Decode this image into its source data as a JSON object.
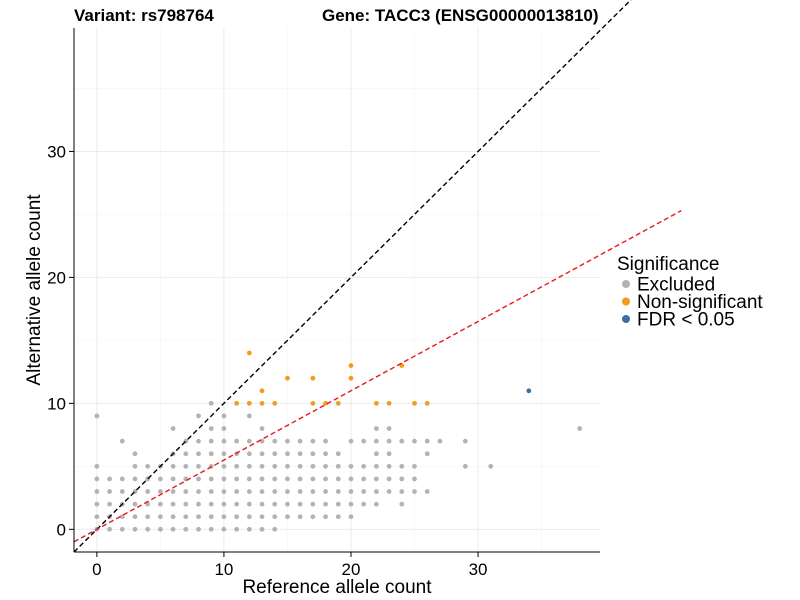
{
  "chart_data": {
    "type": "scatter",
    "title_left": "Variant: rs798764",
    "title_right": "Gene: TACC3 (ENSG00000013810)",
    "xlabel": "Reference allele count",
    "ylabel": "Alternative allele count",
    "xlim": [
      -1.8,
      39.6
    ],
    "ylim": [
      -1.8,
      39.8
    ],
    "xticks": [
      0,
      10,
      20,
      30
    ],
    "yticks": [
      0,
      10,
      20,
      30
    ],
    "grid": true,
    "legend": {
      "title": "Significance",
      "position": "right",
      "entries": [
        {
          "label": "Excluded",
          "color": "#b3b3b3"
        },
        {
          "label": "Non-significant",
          "color": "#f49a20"
        },
        {
          "label": "FDR < 0.05",
          "color": "#3b6ea5"
        }
      ]
    },
    "reference_lines": [
      {
        "name": "identity",
        "slope": 1,
        "intercept": 0,
        "color": "#000000",
        "dash": true
      },
      {
        "name": "expected-ratio",
        "slope": 0.55,
        "intercept": 0,
        "color": "#e41a1c",
        "dash": true
      }
    ],
    "series": [
      {
        "name": "Excluded",
        "color": "#b3b3b3",
        "points": [
          [
            0,
            9
          ],
          [
            0,
            5
          ],
          [
            0,
            4
          ],
          [
            0,
            3
          ],
          [
            0,
            2
          ],
          [
            0,
            1
          ],
          [
            0,
            0
          ],
          [
            1,
            4
          ],
          [
            1,
            3
          ],
          [
            1,
            2
          ],
          [
            1,
            1
          ],
          [
            1,
            0
          ],
          [
            2,
            7
          ],
          [
            2,
            4
          ],
          [
            2,
            3
          ],
          [
            2,
            2
          ],
          [
            2,
            1
          ],
          [
            2,
            0
          ],
          [
            3,
            6
          ],
          [
            3,
            5
          ],
          [
            3,
            4
          ],
          [
            3,
            3
          ],
          [
            3,
            2
          ],
          [
            3,
            1
          ],
          [
            3,
            0
          ],
          [
            4,
            5
          ],
          [
            4,
            4
          ],
          [
            4,
            3
          ],
          [
            4,
            2
          ],
          [
            4,
            1
          ],
          [
            4,
            0
          ],
          [
            5,
            5
          ],
          [
            5,
            4
          ],
          [
            5,
            3
          ],
          [
            5,
            2
          ],
          [
            5,
            1
          ],
          [
            5,
            0
          ],
          [
            6,
            8
          ],
          [
            6,
            6
          ],
          [
            6,
            5
          ],
          [
            6,
            4
          ],
          [
            6,
            3
          ],
          [
            6,
            2
          ],
          [
            6,
            1
          ],
          [
            6,
            0
          ],
          [
            7,
            7
          ],
          [
            7,
            6
          ],
          [
            7,
            5
          ],
          [
            7,
            4
          ],
          [
            7,
            3
          ],
          [
            7,
            2
          ],
          [
            7,
            1
          ],
          [
            7,
            0
          ],
          [
            8,
            9
          ],
          [
            8,
            7
          ],
          [
            8,
            6
          ],
          [
            8,
            5
          ],
          [
            8,
            4
          ],
          [
            8,
            3
          ],
          [
            8,
            2
          ],
          [
            8,
            1
          ],
          [
            8,
            0
          ],
          [
            9,
            10
          ],
          [
            9,
            8
          ],
          [
            9,
            7
          ],
          [
            9,
            6
          ],
          [
            9,
            5
          ],
          [
            9,
            4
          ],
          [
            9,
            3
          ],
          [
            9,
            2
          ],
          [
            9,
            1
          ],
          [
            9,
            0
          ],
          [
            10,
            9
          ],
          [
            10,
            8
          ],
          [
            10,
            7
          ],
          [
            10,
            6
          ],
          [
            10,
            5
          ],
          [
            10,
            4
          ],
          [
            10,
            3
          ],
          [
            10,
            2
          ],
          [
            10,
            1
          ],
          [
            10,
            0
          ],
          [
            11,
            7
          ],
          [
            11,
            6
          ],
          [
            11,
            5
          ],
          [
            11,
            4
          ],
          [
            11,
            3
          ],
          [
            11,
            2
          ],
          [
            11,
            1
          ],
          [
            11,
            0
          ],
          [
            12,
            9
          ],
          [
            12,
            7
          ],
          [
            12,
            6
          ],
          [
            12,
            5
          ],
          [
            12,
            4
          ],
          [
            12,
            3
          ],
          [
            12,
            2
          ],
          [
            12,
            1
          ],
          [
            12,
            0
          ],
          [
            13,
            8
          ],
          [
            13,
            7
          ],
          [
            13,
            6
          ],
          [
            13,
            5
          ],
          [
            13,
            4
          ],
          [
            13,
            3
          ],
          [
            13,
            2
          ],
          [
            13,
            1
          ],
          [
            13,
            0
          ],
          [
            14,
            7
          ],
          [
            14,
            6
          ],
          [
            14,
            5
          ],
          [
            14,
            4
          ],
          [
            14,
            3
          ],
          [
            14,
            2
          ],
          [
            14,
            1
          ],
          [
            14,
            0
          ],
          [
            15,
            7
          ],
          [
            15,
            6
          ],
          [
            15,
            5
          ],
          [
            15,
            4
          ],
          [
            15,
            3
          ],
          [
            15,
            2
          ],
          [
            15,
            1
          ],
          [
            16,
            7
          ],
          [
            16,
            6
          ],
          [
            16,
            5
          ],
          [
            16,
            4
          ],
          [
            16,
            3
          ],
          [
            16,
            2
          ],
          [
            16,
            1
          ],
          [
            17,
            7
          ],
          [
            17,
            6
          ],
          [
            17,
            5
          ],
          [
            17,
            4
          ],
          [
            17,
            3
          ],
          [
            17,
            2
          ],
          [
            17,
            1
          ],
          [
            18,
            7
          ],
          [
            18,
            6
          ],
          [
            18,
            5
          ],
          [
            18,
            4
          ],
          [
            18,
            3
          ],
          [
            18,
            2
          ],
          [
            18,
            1
          ],
          [
            19,
            6
          ],
          [
            19,
            5
          ],
          [
            19,
            4
          ],
          [
            19,
            3
          ],
          [
            19,
            2
          ],
          [
            19,
            1
          ],
          [
            20,
            7
          ],
          [
            20,
            5
          ],
          [
            20,
            4
          ],
          [
            20,
            3
          ],
          [
            20,
            2
          ],
          [
            20,
            1
          ],
          [
            21,
            7
          ],
          [
            21,
            5
          ],
          [
            21,
            4
          ],
          [
            21,
            3
          ],
          [
            21,
            2
          ],
          [
            22,
            8
          ],
          [
            22,
            7
          ],
          [
            22,
            6
          ],
          [
            22,
            5
          ],
          [
            22,
            4
          ],
          [
            22,
            3
          ],
          [
            22,
            2
          ],
          [
            23,
            8
          ],
          [
            23,
            7
          ],
          [
            23,
            6
          ],
          [
            23,
            5
          ],
          [
            23,
            4
          ],
          [
            23,
            3
          ],
          [
            24,
            7
          ],
          [
            24,
            5
          ],
          [
            24,
            4
          ],
          [
            24,
            3
          ],
          [
            24,
            2
          ],
          [
            25,
            7
          ],
          [
            25,
            5
          ],
          [
            25,
            4
          ],
          [
            25,
            3
          ],
          [
            26,
            7
          ],
          [
            26,
            6
          ],
          [
            26,
            3
          ],
          [
            27,
            7
          ],
          [
            29,
            7
          ],
          [
            29,
            5
          ],
          [
            31,
            5
          ],
          [
            38,
            8
          ]
        ]
      },
      {
        "name": "Non-significant",
        "color": "#f49a20",
        "points": [
          [
            11,
            10
          ],
          [
            12,
            14
          ],
          [
            12,
            10
          ],
          [
            13,
            11
          ],
          [
            13,
            10
          ],
          [
            14,
            10
          ],
          [
            15,
            12
          ],
          [
            17,
            12
          ],
          [
            17,
            10
          ],
          [
            18,
            10
          ],
          [
            19,
            10
          ],
          [
            20,
            13
          ],
          [
            20,
            12
          ],
          [
            22,
            10
          ],
          [
            23,
            10
          ],
          [
            24,
            13
          ],
          [
            25,
            10
          ],
          [
            26,
            10
          ]
        ]
      },
      {
        "name": "FDR < 0.05",
        "color": "#3b6ea5",
        "points": [
          [
            34,
            11
          ]
        ]
      }
    ]
  }
}
